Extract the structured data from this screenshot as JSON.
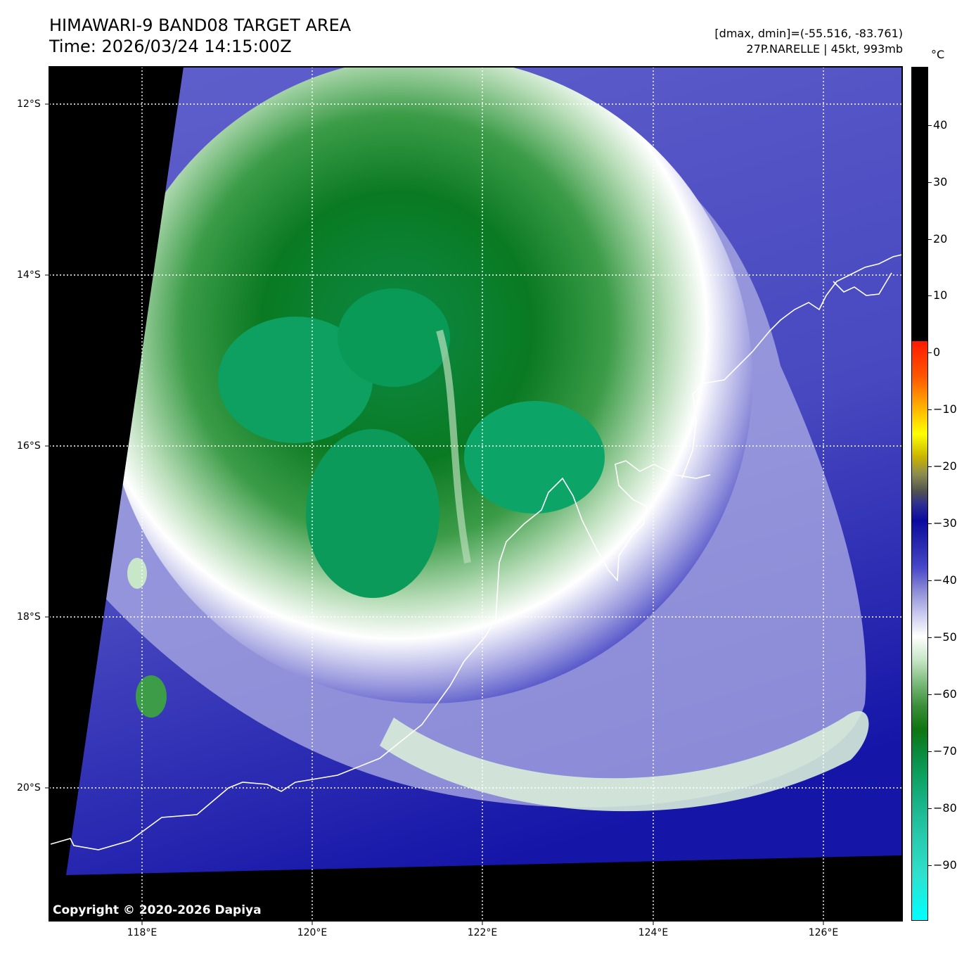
{
  "title": {
    "line1": "HIMAWARI-9 BAND08 TARGET AREA",
    "line2": "Time: 2026/03/24 14:15:00Z"
  },
  "info": {
    "range": "[dmax, dmin]=(-55.516, -83.761)",
    "storm": "27P.NARELLE | 45kt, 993mb"
  },
  "colorbar": {
    "unit": "°C",
    "ticks": [
      "40",
      "30",
      "20",
      "10",
      "0",
      "−10",
      "−20",
      "−30",
      "−40",
      "−50",
      "−60",
      "−70",
      "−80",
      "−90"
    ],
    "max": 49,
    "min": -100,
    "colors": {
      "warm_masked": "#000000",
      "cold_tops": "#0d9a5c",
      "deep_convection": "#0f750f",
      "cirrus": "#ffffff",
      "clear": "#4a4ac4",
      "dry_clear": "#0a0aa0"
    }
  },
  "axes": {
    "lat_labels": [
      "12°S",
      "14°S",
      "16°S",
      "18°S",
      "20°S"
    ],
    "lon_labels": [
      "118°E",
      "120°E",
      "122°E",
      "124°E",
      "126°E"
    ]
  },
  "copyright": "Copyright © 2020-2026 Dapiya"
}
